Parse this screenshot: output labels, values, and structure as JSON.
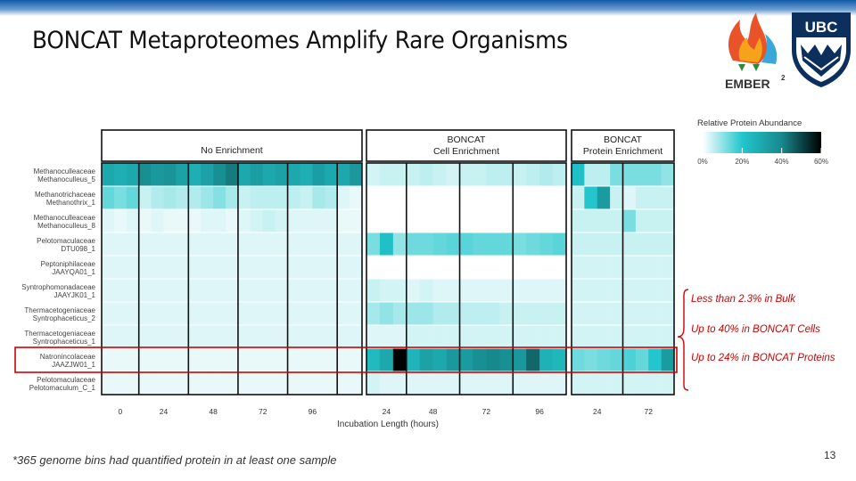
{
  "slide": {
    "title": "BONCAT Metaproteomes Amplify Rare Organisms",
    "footnote": "*365 genome bins had quantified protein in at least one sample",
    "page_number": "13",
    "logo_ember": "EMBER",
    "logo_ember_sup": "2",
    "logo_ubc": "UBC"
  },
  "callouts": [
    "Less than 2.3% in Bulk",
    "Up to 40% in BONCAT Cells",
    "Up to 24% in BONCAT Proteins"
  ],
  "colors": {
    "accent": "#d00000",
    "scale": [
      "#ffffff",
      "#22c6cc",
      "#17898d",
      "#000000"
    ]
  },
  "chart_data": {
    "type": "heatmap",
    "xlabel": "Incubation Length (hours)",
    "legend_title": "Relative Protein Abundance",
    "legend_ticks": [
      "0%",
      "20%",
      "40%",
      "60%"
    ],
    "legend_range": [
      0,
      60
    ],
    "legend_placement": "top-right",
    "panels": [
      {
        "label_lines": [
          "No Enrichment"
        ],
        "columns": 21,
        "groups": [
          [
            "0",
            3
          ],
          [
            "24",
            4
          ],
          [
            "48",
            4
          ],
          [
            "72",
            4
          ],
          [
            "96",
            4
          ],
          [
            "",
            2
          ]
        ]
      },
      {
        "label_lines": [
          "BONCAT",
          "Cell Enrichment"
        ],
        "columns": 15,
        "groups": [
          [
            "24",
            3
          ],
          [
            "48",
            4
          ],
          [
            "72",
            4
          ],
          [
            "96",
            4
          ]
        ]
      },
      {
        "label_lines": [
          "BONCAT",
          "Protein Enrichment"
        ],
        "columns": 8,
        "groups": [
          [
            "24",
            4
          ],
          [
            "72",
            4
          ]
        ]
      }
    ],
    "rows": [
      {
        "family": "Methanoculleaceae",
        "genome": "Methanoculleus_5"
      },
      {
        "family": "Methanotrichaceae",
        "genome": "Methanothrix_1"
      },
      {
        "family": "Methanoculleaceae",
        "genome": "Methanoculleus_8"
      },
      {
        "family": "Pelotomaculaceae",
        "genome": "DTU098_1"
      },
      {
        "family": "Peptoniphilaceae",
        "genome": "JAAYQA01_1"
      },
      {
        "family": "Syntrophomonadaceae",
        "genome": "JAAYJK01_1"
      },
      {
        "family": "Thermacetogeniaceae",
        "genome": "Syntrophaceticus_2"
      },
      {
        "family": "Thermacetogeniaceae",
        "genome": "Syntrophaceticus_1"
      },
      {
        "family": "Natronincolaceae",
        "genome": "JAAZJW01_1"
      },
      {
        "family": "Pelotomaculaceae",
        "genome": "Pelotomaculum_C_1"
      }
    ],
    "highlight_row": 8,
    "values": [
      [
        [
          30,
          28,
          30,
          38,
          35,
          36,
          32,
          28,
          32,
          38,
          42,
          30,
          33,
          30,
          32,
          30,
          28,
          33,
          30,
          30,
          35
        ],
        [
          14,
          12,
          14,
          5,
          7,
          8,
          7,
          7,
          9,
          11,
          8,
          5,
          6,
          6,
          6,
          6,
          5,
          8,
          7,
          3,
          2
        ],
        [
          3,
          2,
          3,
          2,
          3,
          2,
          2,
          2,
          3,
          3,
          2,
          3,
          4,
          5,
          4,
          3,
          3,
          3,
          3,
          2,
          2
        ],
        [
          3,
          3,
          3,
          3,
          3,
          3,
          3,
          3,
          3,
          3,
          3,
          3,
          3,
          3,
          3,
          3,
          3,
          3,
          3,
          3,
          3
        ],
        [
          3,
          3,
          3,
          3,
          3,
          3,
          3,
          3,
          3,
          3,
          3,
          3,
          3,
          3,
          3,
          3,
          3,
          3,
          3,
          3,
          3
        ],
        [
          3,
          3,
          3,
          3,
          3,
          3,
          3,
          3,
          3,
          3,
          3,
          3,
          3,
          3,
          3,
          3,
          3,
          3,
          3,
          3,
          3
        ],
        [
          3,
          3,
          3,
          3,
          3,
          3,
          3,
          3,
          3,
          3,
          3,
          3,
          3,
          3,
          3,
          3,
          3,
          3,
          3,
          3,
          3
        ],
        [
          3,
          3,
          3,
          3,
          3,
          3,
          3,
          3,
          3,
          3,
          3,
          3,
          3,
          3,
          3,
          3,
          3,
          3,
          3,
          3,
          3
        ],
        [
          2,
          2,
          2,
          2,
          2,
          2,
          2,
          2,
          2,
          2,
          2,
          2,
          2,
          2,
          2,
          2,
          2,
          2,
          2,
          2,
          2
        ],
        [
          2,
          2,
          2,
          2,
          2,
          2,
          2,
          2,
          2,
          2,
          2,
          2,
          2,
          2,
          2,
          2,
          2,
          2,
          2,
          2,
          2
        ]
      ],
      [
        [
          4,
          5,
          5,
          5,
          6,
          5,
          4,
          5,
          5,
          6,
          6,
          5,
          6,
          7,
          6
        ],
        [
          0,
          0,
          0,
          0,
          0,
          0,
          0,
          0,
          0,
          0,
          0,
          0,
          0,
          0,
          0
        ],
        [
          0,
          0,
          0,
          0,
          0,
          0,
          0,
          0,
          0,
          0,
          0,
          0,
          0,
          0,
          0
        ],
        [
          12,
          22,
          10,
          13,
          13,
          14,
          15,
          15,
          14,
          14,
          14,
          12,
          13,
          14,
          15
        ],
        [
          0,
          0,
          0,
          0,
          0,
          0,
          0,
          0,
          0,
          0,
          0,
          0,
          0,
          0,
          0
        ],
        [
          5,
          4,
          4,
          3,
          4,
          3,
          3,
          3,
          3,
          3,
          3,
          3,
          3,
          3,
          3
        ],
        [
          8,
          10,
          8,
          9,
          9,
          7,
          7,
          6,
          6,
          6,
          5,
          5,
          5,
          5,
          5
        ],
        [
          3,
          3,
          3,
          4,
          4,
          4,
          4,
          4,
          4,
          4,
          4,
          4,
          4,
          4,
          4
        ],
        [
          24,
          30,
          60,
          26,
          32,
          30,
          35,
          34,
          38,
          40,
          38,
          35,
          45,
          27,
          25
        ],
        [
          4,
          3,
          3,
          3,
          3,
          3,
          3,
          3,
          3,
          3,
          3,
          3,
          3,
          3,
          3
        ]
      ],
      [
        [
          22,
          6,
          6,
          12,
          12,
          12,
          12,
          10
        ],
        [
          5,
          20,
          34,
          5,
          3,
          5,
          5,
          5
        ],
        [
          5,
          5,
          5,
          5,
          12,
          5,
          5,
          5
        ],
        [
          5,
          5,
          5,
          5,
          5,
          5,
          5,
          5
        ],
        [
          4,
          4,
          4,
          4,
          4,
          4,
          4,
          4
        ],
        [
          4,
          4,
          4,
          4,
          4,
          4,
          4,
          4
        ],
        [
          4,
          4,
          4,
          4,
          4,
          4,
          4,
          4
        ],
        [
          4,
          4,
          4,
          4,
          4,
          4,
          4,
          4
        ],
        [
          13,
          12,
          13,
          14,
          16,
          14,
          20,
          34
        ],
        [
          4,
          4,
          4,
          4,
          4,
          4,
          4,
          4
        ]
      ]
    ]
  }
}
